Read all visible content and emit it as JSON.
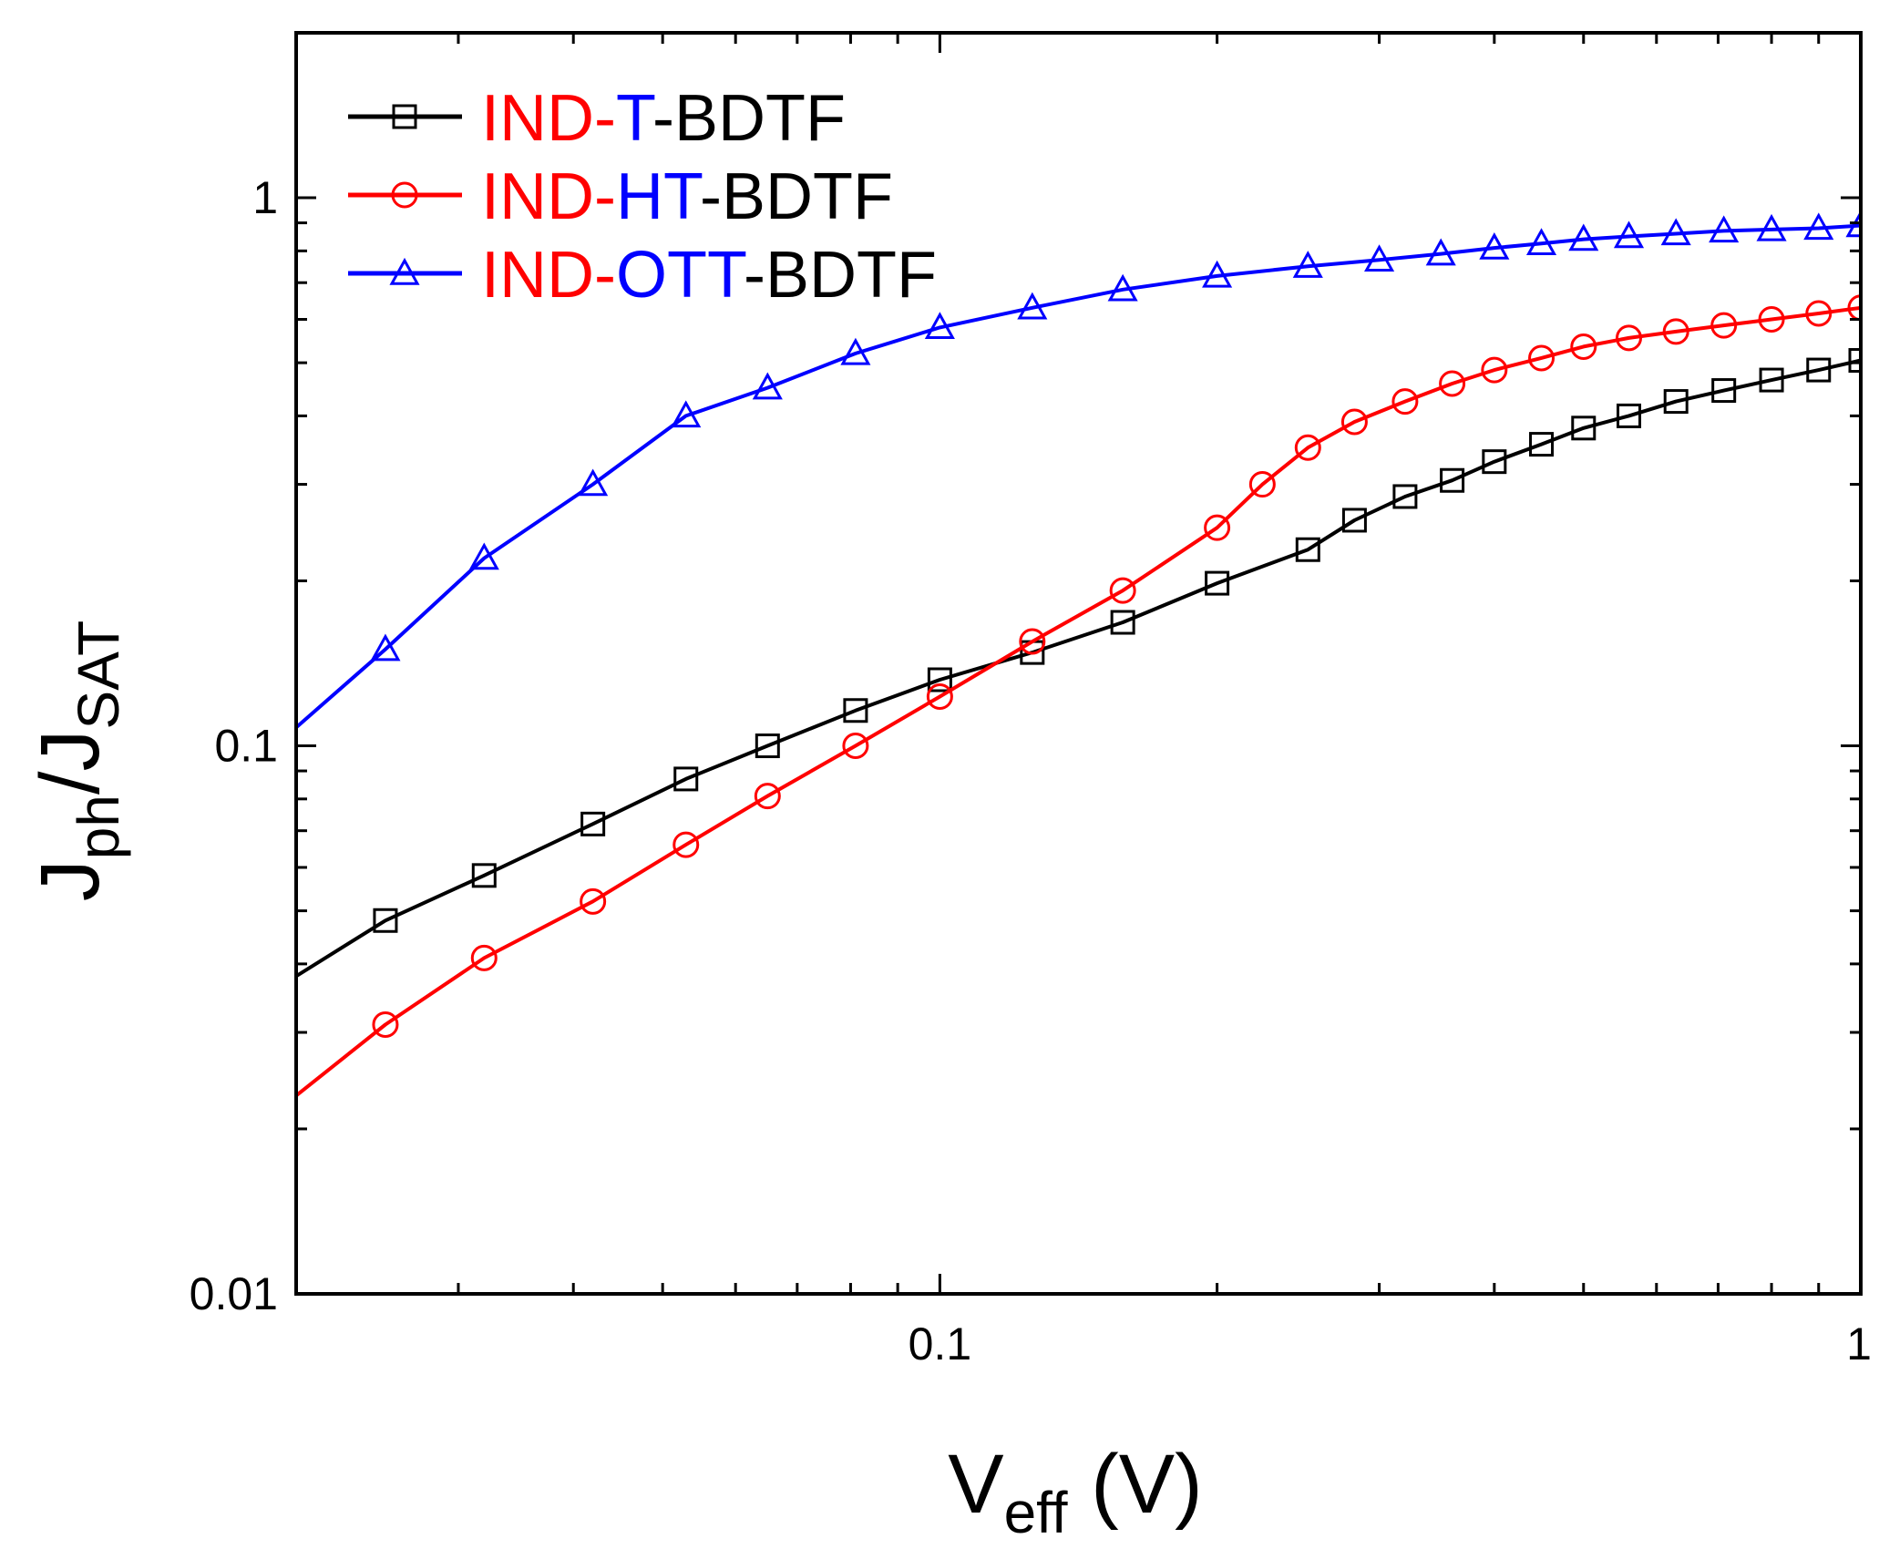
{
  "chart_data": {
    "type": "line",
    "title": "",
    "xscale": "log",
    "yscale": "log",
    "xlim": [
      0.02,
      1.0
    ],
    "ylim": [
      0.01,
      2.0
    ],
    "xlabel": {
      "main": "V",
      "sub": "eff",
      "unit": " (V)"
    },
    "ylabel": {
      "main1": "J",
      "sub1": "ph",
      "slash": "/",
      "main2": "J",
      "sub2": "SAT"
    },
    "x_tick_labels": [
      {
        "value": 0.1,
        "label": "0.1"
      },
      {
        "value": 1.0,
        "label": "1"
      }
    ],
    "y_tick_labels": [
      {
        "value": 0.01,
        "label": "0.01"
      },
      {
        "value": 0.1,
        "label": "0.1"
      },
      {
        "value": 1.0,
        "label": "1"
      }
    ],
    "legend_position": "top-left",
    "series": [
      {
        "name": "IND-T-BDTF",
        "legend_parts": [
          {
            "text": "IND",
            "color": "#ff0000"
          },
          {
            "text": "-",
            "color": "#ff0000"
          },
          {
            "text": "T",
            "color": "#0000ff"
          },
          {
            "text": "-BDTF",
            "color": "#000000"
          }
        ],
        "color": "#000000",
        "marker": "square",
        "x": [
          0.02,
          0.025,
          0.032,
          0.042,
          0.053,
          0.065,
          0.081,
          0.1,
          0.126,
          0.158,
          0.2,
          0.251,
          0.282,
          0.32,
          0.36,
          0.4,
          0.45,
          0.5,
          0.56,
          0.63,
          0.71,
          0.8,
          0.9,
          1.0
        ],
        "y": [
          0.038,
          0.048,
          0.058,
          0.072,
          0.087,
          0.1,
          0.116,
          0.132,
          0.148,
          0.168,
          0.198,
          0.228,
          0.258,
          0.285,
          0.305,
          0.33,
          0.355,
          0.38,
          0.4,
          0.425,
          0.445,
          0.465,
          0.485,
          0.505
        ]
      },
      {
        "name": "IND-HT-BDTF",
        "legend_parts": [
          {
            "text": "IND",
            "color": "#ff0000"
          },
          {
            "text": "-",
            "color": "#ff0000"
          },
          {
            "text": "HT",
            "color": "#0000ff"
          },
          {
            "text": "-BDTF",
            "color": "#000000"
          }
        ],
        "color": "#ff0000",
        "marker": "circle",
        "x": [
          0.02,
          0.025,
          0.032,
          0.042,
          0.053,
          0.065,
          0.081,
          0.1,
          0.126,
          0.158,
          0.2,
          0.224,
          0.251,
          0.282,
          0.32,
          0.36,
          0.4,
          0.45,
          0.5,
          0.56,
          0.63,
          0.71,
          0.8,
          0.9,
          1.0
        ],
        "y": [
          0.023,
          0.031,
          0.041,
          0.052,
          0.066,
          0.081,
          0.1,
          0.123,
          0.155,
          0.192,
          0.25,
          0.3,
          0.35,
          0.39,
          0.425,
          0.458,
          0.485,
          0.51,
          0.535,
          0.555,
          0.57,
          0.585,
          0.6,
          0.615,
          0.63
        ]
      },
      {
        "name": "IND-OTT-BDTF",
        "legend_parts": [
          {
            "text": "IND",
            "color": "#ff0000"
          },
          {
            "text": "-",
            "color": "#ff0000"
          },
          {
            "text": "OTT",
            "color": "#0000ff"
          },
          {
            "text": "-BDTF",
            "color": "#000000"
          }
        ],
        "color": "#0000ff",
        "marker": "triangle",
        "x": [
          0.02,
          0.025,
          0.032,
          0.042,
          0.053,
          0.065,
          0.081,
          0.1,
          0.126,
          0.158,
          0.2,
          0.251,
          0.3,
          0.35,
          0.4,
          0.45,
          0.5,
          0.56,
          0.63,
          0.71,
          0.8,
          0.9,
          1.0
        ],
        "y": [
          0.108,
          0.15,
          0.22,
          0.3,
          0.4,
          0.45,
          0.52,
          0.58,
          0.63,
          0.68,
          0.72,
          0.75,
          0.77,
          0.79,
          0.81,
          0.825,
          0.84,
          0.85,
          0.86,
          0.87,
          0.875,
          0.88,
          0.89
        ]
      }
    ]
  }
}
